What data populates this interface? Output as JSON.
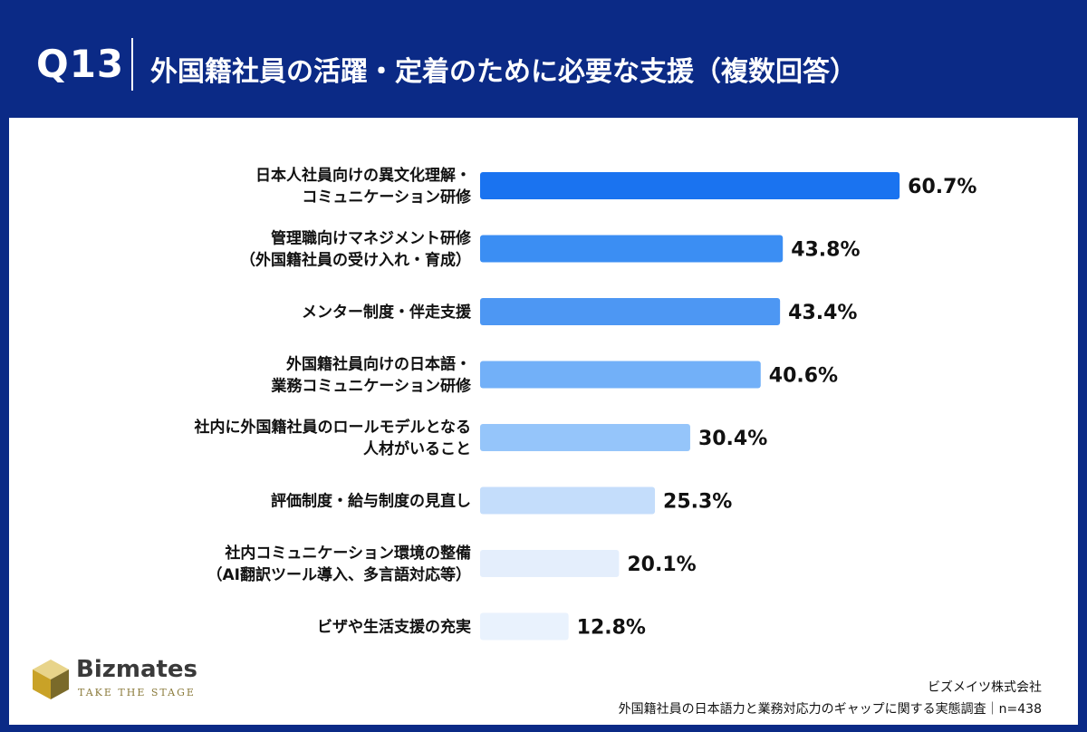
{
  "header": {
    "question_no": "Q13",
    "title": "外国籍社員の活躍・定着のために必要な支援（複数回答）"
  },
  "chart_data": {
    "type": "bar",
    "orientation": "horizontal",
    "categories": [
      [
        "日本人社員向けの異文化理解・",
        "コミュニケーション研修"
      ],
      [
        "管理職向けマネジメント研修",
        "（外国籍社員の受け入れ・育成）"
      ],
      [
        "メンター制度・伴走支援"
      ],
      [
        "外国籍社員向けの日本語・",
        "業務コミュニケーション研修"
      ],
      [
        "社内に外国籍社員のロールモデルとなる",
        "人材がいること"
      ],
      [
        "評価制度・給与制度の見直し"
      ],
      [
        "社内コミュニケーション環境の整備",
        "（AI翻訳ツール導入、多言語対応等）"
      ],
      [
        "ビザや生活支援の充実"
      ]
    ],
    "values": [
      60.7,
      43.8,
      43.4,
      40.6,
      30.4,
      25.3,
      20.1,
      12.8
    ],
    "value_labels": [
      "60.7%",
      "43.8%",
      "43.4%",
      "40.6%",
      "30.4%",
      "25.3%",
      "20.1%",
      "12.8%"
    ],
    "colors": [
      "#1a73f0",
      "#3b8ef3",
      "#4d97f3",
      "#72b0f8",
      "#95c5fa",
      "#c4ddfb",
      "#e4eefc",
      "#e9f2fd"
    ],
    "unit": "%",
    "xlim": [
      0,
      70
    ],
    "grid": false,
    "legend": "none"
  },
  "footer": {
    "company": "ビズメイツ株式会社",
    "survey": "外国籍社員の日本語力と業務対応力のギャップに関する実態調査｜n=438"
  },
  "logo": {
    "name": "Bizmates",
    "tagline": "TAKE THE STAGE",
    "colors": [
      "#c9a227",
      "#e8d48a",
      "#7a6a2a"
    ]
  }
}
